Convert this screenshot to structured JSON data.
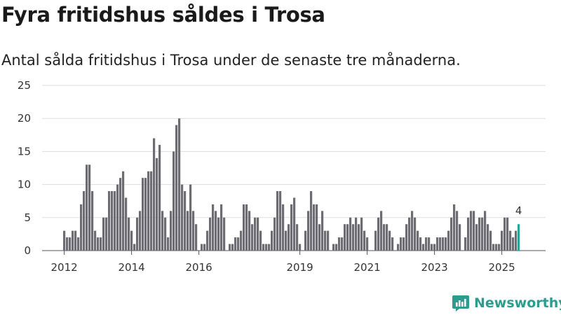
{
  "title": "Fyra fritidshus såldes i Trosa",
  "subtitle": "Antal sålda fritidshus i Trosa under de senaste tre månaderna.",
  "brand": "Newsworthy",
  "colors": {
    "bar": "#6d6c72",
    "highlight": "#26a69a",
    "grid": "#dddddd",
    "brand": "#2a9d8f"
  },
  "chart_data": {
    "type": "bar",
    "title": "Fyra fritidshus såldes i Trosa",
    "xlabel": "",
    "ylabel": "",
    "ylim": [
      0,
      25
    ],
    "yticks": [
      0,
      5,
      10,
      15,
      20,
      25
    ],
    "xticks": [
      {
        "label": "2012",
        "index": 0
      },
      {
        "label": "2014",
        "index": 24
      },
      {
        "label": "2016",
        "index": 48
      },
      {
        "label": "2019",
        "index": 84
      },
      {
        "label": "2021",
        "index": 108
      },
      {
        "label": "2023",
        "index": 132
      },
      {
        "label": "2025",
        "index": 156
      }
    ],
    "highlight_label": "4",
    "values": [
      3,
      2,
      2,
      3,
      3,
      2,
      7,
      9,
      13,
      13,
      9,
      3,
      2,
      2,
      5,
      5,
      9,
      9,
      9,
      10,
      11,
      12,
      8,
      5,
      3,
      1,
      5,
      6,
      11,
      11,
      12,
      12,
      17,
      14,
      16,
      6,
      5,
      2,
      6,
      15,
      19,
      20,
      10,
      9,
      6,
      10,
      6,
      4,
      null,
      1,
      1,
      3,
      5,
      7,
      6,
      5,
      7,
      5,
      null,
      1,
      1,
      2,
      2,
      3,
      7,
      7,
      6,
      4,
      5,
      5,
      3,
      1,
      1,
      1,
      3,
      5,
      9,
      9,
      7,
      3,
      4,
      7,
      8,
      4,
      1,
      null,
      3,
      6,
      9,
      7,
      7,
      4,
      6,
      3,
      3,
      null,
      1,
      1,
      2,
      2,
      4,
      4,
      5,
      4,
      5,
      4,
      5,
      3,
      2,
      null,
      null,
      3,
      5,
      6,
      4,
      4,
      3,
      2,
      null,
      1,
      2,
      2,
      4,
      5,
      6,
      5,
      3,
      2,
      1,
      2,
      2,
      1,
      1,
      2,
      2,
      2,
      2,
      3,
      5,
      7,
      6,
      4,
      null,
      2,
      5,
      6,
      6,
      4,
      5,
      5,
      6,
      4,
      3,
      1,
      1,
      1,
      3,
      5,
      5,
      3,
      2,
      3,
      4
    ]
  }
}
